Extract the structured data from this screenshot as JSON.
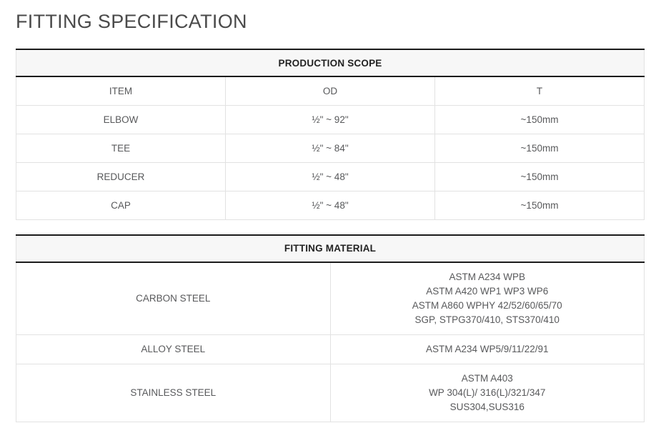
{
  "page": {
    "title": "FITTING SPECIFICATION"
  },
  "colors": {
    "background": "#ffffff",
    "header_bg": "#f7f7f7",
    "dark_rule": "#1b1b1b",
    "grid_line": "#e2e2e2",
    "title_text": "#4a4a4a",
    "header_text": "#222222",
    "cell_text": "#58595b"
  },
  "production_scope": {
    "title": "PRODUCTION SCOPE",
    "columns": [
      "ITEM",
      "OD",
      "T"
    ],
    "rows": [
      {
        "item": "ELBOW",
        "od": "½\" ~ 92\"",
        "t": "~150mm"
      },
      {
        "item": "TEE",
        "od": "½\" ~ 84\"",
        "t": "~150mm"
      },
      {
        "item": "REDUCER",
        "od": "½\" ~ 48\"",
        "t": "~150mm"
      },
      {
        "item": "CAP",
        "od": "½\" ~ 48\"",
        "t": "~150mm"
      }
    ]
  },
  "fitting_material": {
    "title": "FITTING MATERIAL",
    "rows": [
      {
        "material": "CARBON STEEL",
        "specs": [
          "ASTM A234 WPB",
          "ASTM A420 WP1 WP3 WP6",
          "ASTM A860 WPHY 42/52/60/65/70",
          "SGP, STPG370/410, STS370/410"
        ]
      },
      {
        "material": "ALLOY STEEL",
        "specs": [
          "ASTM A234 WP5/9/11/22/91"
        ]
      },
      {
        "material": "STAINLESS STEEL",
        "specs": [
          "ASTM A403",
          "WP 304(L)/ 316(L)/321/347",
          "SUS304,SUS316"
        ]
      }
    ]
  }
}
